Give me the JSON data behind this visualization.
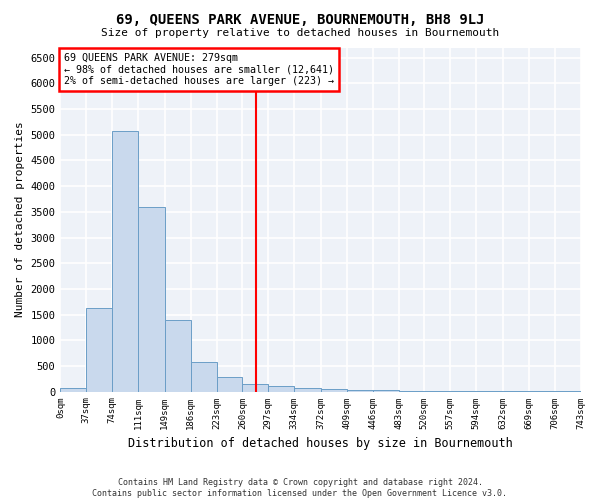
{
  "title": "69, QUEENS PARK AVENUE, BOURNEMOUTH, BH8 9LJ",
  "subtitle": "Size of property relative to detached houses in Bournemouth",
  "xlabel": "Distribution of detached houses by size in Bournemouth",
  "ylabel": "Number of detached properties",
  "footer_line1": "Contains HM Land Registry data © Crown copyright and database right 2024.",
  "footer_line2": "Contains public sector information licensed under the Open Government Licence v3.0.",
  "annotation_line1": "69 QUEENS PARK AVENUE: 279sqm",
  "annotation_line2": "← 98% of detached houses are smaller (12,641)",
  "annotation_line3": "2% of semi-detached houses are larger (223) →",
  "property_size": 279,
  "bar_color": "#c9d9ed",
  "bar_edge_color": "#6b9ec7",
  "vline_color": "red",
  "background_color": "#eef2f8",
  "grid_color": "white",
  "bin_edges": [
    0,
    37,
    74,
    111,
    149,
    186,
    223,
    260,
    297,
    334,
    372,
    409,
    446,
    483,
    520,
    557,
    594,
    632,
    669,
    706,
    743
  ],
  "bin_labels": [
    "0sqm",
    "37sqm",
    "74sqm",
    "111sqm",
    "149sqm",
    "186sqm",
    "223sqm",
    "260sqm",
    "297sqm",
    "334sqm",
    "372sqm",
    "409sqm",
    "446sqm",
    "483sqm",
    "520sqm",
    "557sqm",
    "594sqm",
    "632sqm",
    "669sqm",
    "706sqm",
    "743sqm"
  ],
  "bar_heights": [
    75,
    1625,
    5080,
    3600,
    1400,
    580,
    290,
    145,
    110,
    70,
    55,
    40,
    30,
    20,
    15,
    10,
    8,
    5,
    4,
    3
  ],
  "ylim": [
    0,
    6700
  ],
  "yticks": [
    0,
    500,
    1000,
    1500,
    2000,
    2500,
    3000,
    3500,
    4000,
    4500,
    5000,
    5500,
    6000,
    6500
  ]
}
